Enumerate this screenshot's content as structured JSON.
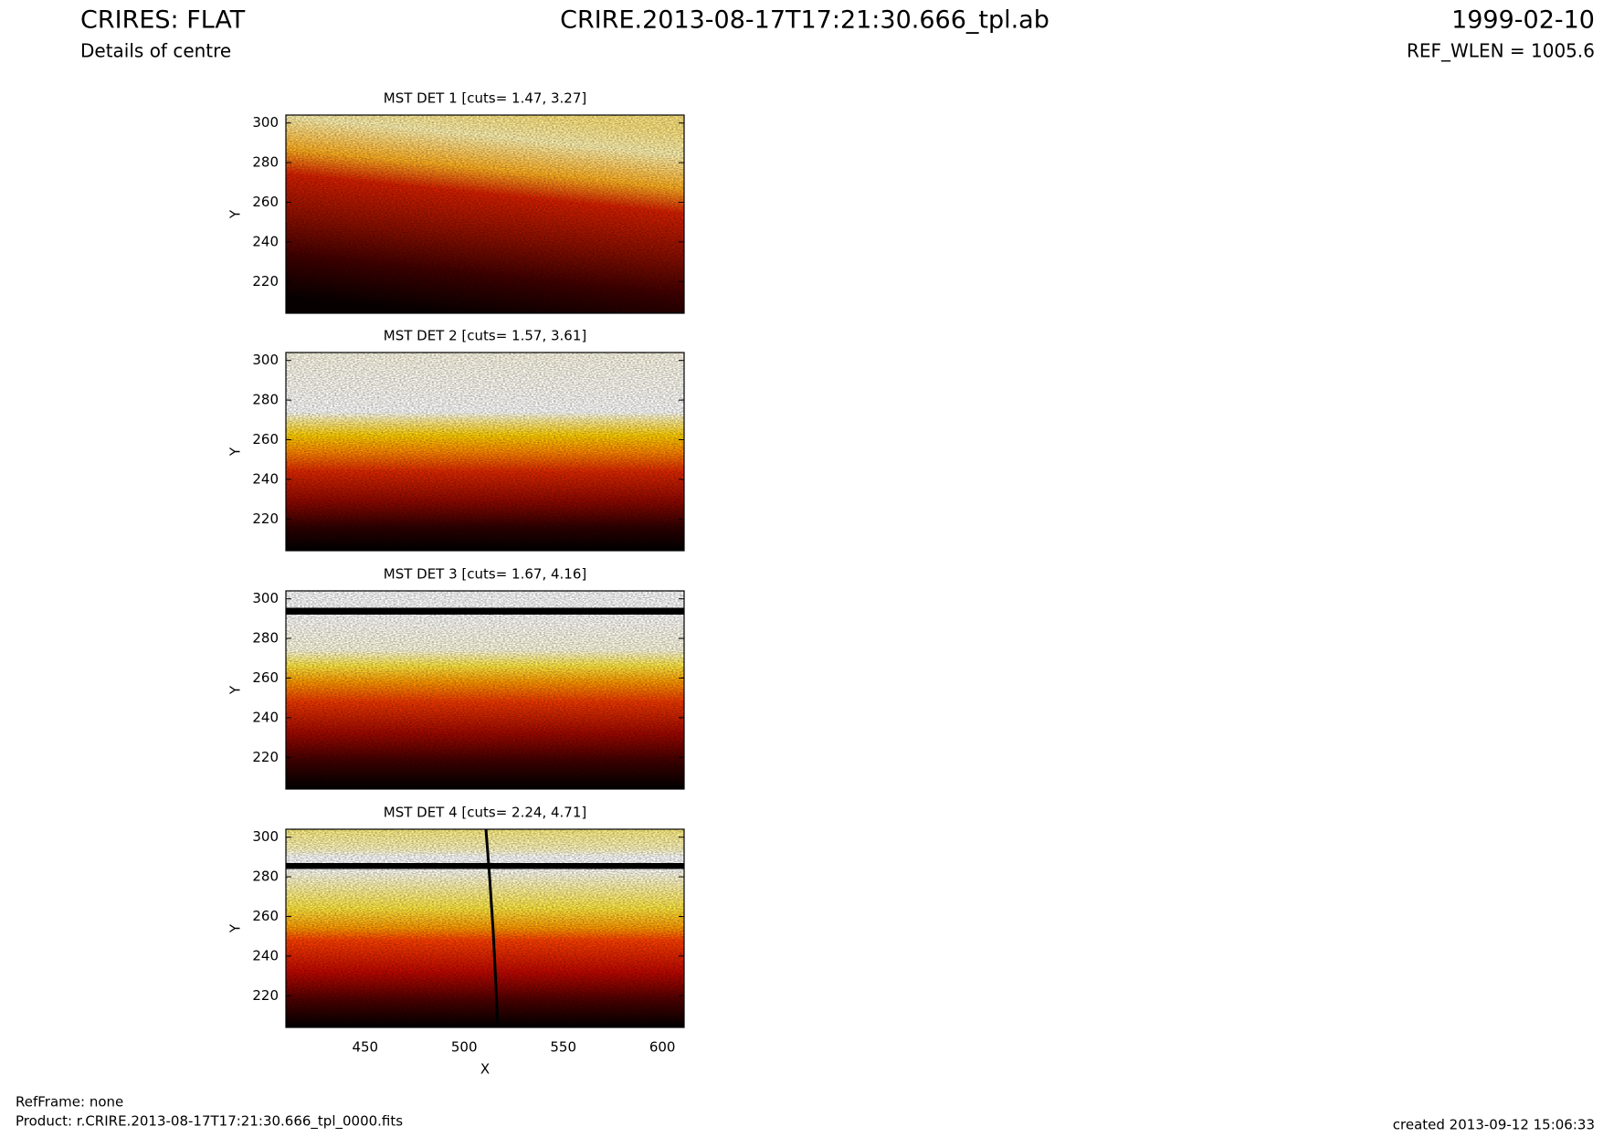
{
  "header": {
    "title": "CRIRES: FLAT",
    "subtitle": "Details of centre",
    "filename": "CRIRE.2013-08-17T17:21:30.666_tpl.ab",
    "date": "1999-02-10",
    "ref_wlen": "REF_WLEN = 1005.6"
  },
  "chart_data": [
    {
      "type": "heatmap",
      "title": "MST DET 1 [cuts= 1.47, 3.27]",
      "ylabel": "Y",
      "xlim": [
        410,
        611
      ],
      "ylim": [
        204,
        304
      ],
      "yticks": [
        220,
        240,
        260,
        280,
        300
      ]
    },
    {
      "type": "heatmap",
      "title": "MST DET 2 [cuts= 1.57, 3.61]",
      "ylabel": "Y",
      "xlim": [
        410,
        611
      ],
      "ylim": [
        204,
        304
      ],
      "yticks": [
        220,
        240,
        260,
        280,
        300
      ]
    },
    {
      "type": "heatmap",
      "title": "MST DET 3 [cuts= 1.67, 4.16]",
      "ylabel": "Y",
      "xlim": [
        410,
        611
      ],
      "ylim": [
        204,
        304
      ],
      "yticks": [
        220,
        240,
        260,
        280,
        300
      ]
    },
    {
      "type": "heatmap",
      "title": "MST DET 4 [cuts= 2.24, 4.71]",
      "ylabel": "Y",
      "xlabel": "X",
      "xlim": [
        410,
        611
      ],
      "ylim": [
        204,
        304
      ],
      "yticks": [
        220,
        240,
        260,
        280,
        300
      ],
      "xticks": [
        450,
        500,
        550,
        600
      ]
    }
  ],
  "footer": {
    "refframe": "RefFrame: none",
    "product": "Product: r.CRIRE.2013-08-17T17:21:30.666_tpl_0000.fits",
    "created": "created 2013-09-12 15:06:33"
  }
}
